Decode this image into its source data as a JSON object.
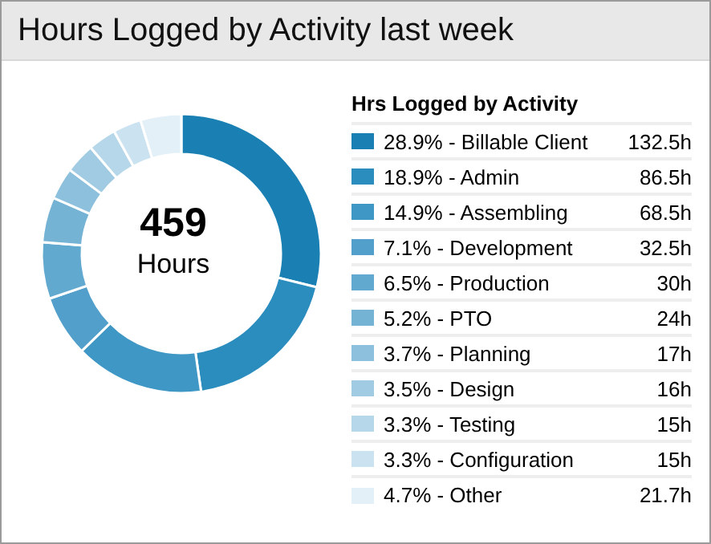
{
  "chart_data": {
    "type": "donut",
    "title": "Hours Logged by Activity last week",
    "legend_title": "Hrs Logged by Activity",
    "legend": "right",
    "annotations": [
      "459",
      "Hours"
    ],
    "categories": [
      "28.9% - Billable Client",
      "18.9% - Admin",
      "14.9% - Assembling",
      "7.1% - Development",
      "6.5% - Production",
      "5.2% - PTO",
      "3.7% - Planning",
      "3.5% - Design",
      "3.3% - Testing",
      "3.3% - Configuration",
      "4.7% - Other"
    ],
    "values": [
      132.5,
      86.5,
      68.5,
      32.5,
      30,
      24,
      17,
      16,
      15,
      15,
      21.7
    ],
    "value_labels": [
      "132.5h",
      "86.5h",
      "68.5h",
      "32.5h",
      "30h",
      "24h",
      "17h",
      "16h",
      "15h",
      "15h",
      "21.7h"
    ],
    "colors": [
      "#1a80b3",
      "#2b8cbe",
      "#3f97c5",
      "#519fca",
      "#62a9cf",
      "#75b3d5",
      "#8cc0dc",
      "#a0cbe2",
      "#b5d7e9",
      "#cbe3f0",
      "#e3f0f7"
    ]
  }
}
